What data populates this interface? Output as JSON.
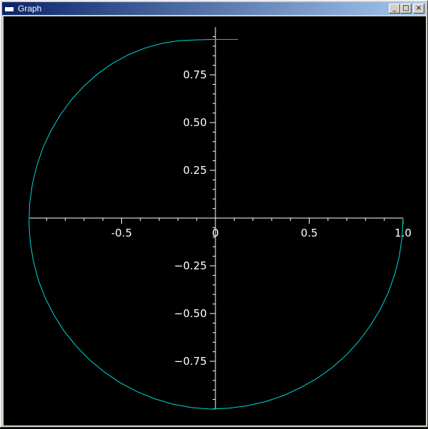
{
  "window": {
    "title": "Graph",
    "icon": "window-icon",
    "controls": {
      "minimize": "_",
      "maximize": "□",
      "close": "×"
    }
  },
  "colors": {
    "background": "#000000",
    "axes": "#ffffff",
    "curve": "#00d8d8",
    "titlebar_start": "#0a246a",
    "titlebar_end": "#a6caf0"
  },
  "chart_data": {
    "type": "line",
    "title": "",
    "xlabel": "",
    "ylabel": "",
    "xlim": [
      -0.99,
      1.0
    ],
    "ylim": [
      -1.0,
      1.0
    ],
    "grid": false,
    "x_ticks": [
      {
        "value": -0.5,
        "label": "-0.5"
      },
      {
        "value": 0,
        "label": "0"
      },
      {
        "value": 0.5,
        "label": "0.5"
      },
      {
        "value": 1.0,
        "label": "1.0"
      }
    ],
    "y_ticks": [
      {
        "value": 0.75,
        "label": "0.75"
      },
      {
        "value": 0.5,
        "label": "0.50"
      },
      {
        "value": 0.25,
        "label": "0.25"
      },
      {
        "value": -0.25,
        "label": "−0.25"
      },
      {
        "value": -0.5,
        "label": "−0.50"
      },
      {
        "value": -0.75,
        "label": "−0.75"
      }
    ],
    "series": [
      {
        "x": [
          1.0,
          0.995,
          0.98,
          0.955,
          0.921,
          0.878,
          0.826,
          0.766,
          0.698,
          0.623,
          0.542,
          0.455,
          0.364,
          0.268,
          0.17,
          0.07,
          -0.03,
          -0.13,
          -0.229,
          -0.326,
          -0.42,
          -0.51,
          -0.594,
          -0.672,
          -0.743,
          -0.806,
          -0.861,
          -0.907,
          -0.944,
          -0.97,
          -0.987,
          -0.994,
          -0.99,
          -0.976,
          -0.952,
          -0.919,
          -0.876,
          -0.825,
          -0.766,
          -0.7,
          -0.628,
          -0.55,
          -0.466,
          -0.378,
          -0.287,
          -0.194,
          -0.1,
          -0.005,
          0.12
        ],
        "y": [
          0.0,
          -0.1,
          -0.2,
          -0.297,
          -0.391,
          -0.479,
          -0.563,
          -0.643,
          -0.717,
          -0.782,
          -0.839,
          -0.887,
          -0.929,
          -0.961,
          -0.983,
          -0.996,
          -1.0,
          -0.992,
          -0.974,
          -0.946,
          -0.908,
          -0.861,
          -0.805,
          -0.741,
          -0.67,
          -0.592,
          -0.508,
          -0.419,
          -0.325,
          -0.228,
          -0.128,
          -0.027,
          0.075,
          0.176,
          0.274,
          0.369,
          0.459,
          0.543,
          0.621,
          0.692,
          0.755,
          0.809,
          0.854,
          0.889,
          0.914,
          0.929,
          0.933,
          0.935,
          0.935
        ]
      }
    ]
  }
}
